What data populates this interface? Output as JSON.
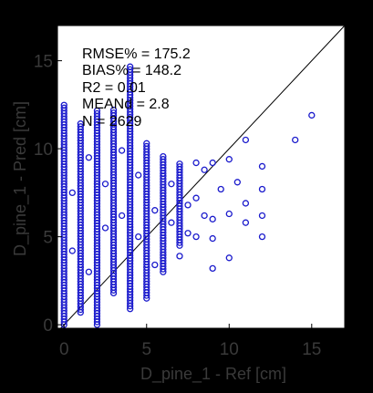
{
  "chart_data": {
    "type": "scatter",
    "xlabel": "D_pine_1 - Ref [cm]",
    "ylabel": "D_pine_1 - Pred [cm]",
    "xlim": [
      -0.4,
      17
    ],
    "ylim": [
      -0.2,
      17
    ],
    "xticks": [
      "0",
      "5",
      "10",
      "15"
    ],
    "yticks": [
      "0",
      "5",
      "10",
      "15"
    ],
    "grid": false,
    "reference_line": "1:1",
    "marker": "open-circle",
    "colors": {
      "points": "#1a1acc",
      "background": "#000000",
      "plot_area": "#ffffff",
      "reference_line": "#000000"
    },
    "stats": [
      {
        "label": "RMSE% = 175.2"
      },
      {
        "label": "BIAS% = 148.2"
      },
      {
        "label": "R2 = 0.01"
      },
      {
        "label": "MEANd = 2.8"
      },
      {
        "label": "N = 2629"
      }
    ],
    "scatter_bands": [
      {
        "x": 0,
        "ymin": 0.0,
        "ymax": 12.6
      },
      {
        "x": 1,
        "ymin": 0.7,
        "ymax": 11.5
      },
      {
        "x": 2,
        "ymin": 0.0,
        "ymax": 12.3
      },
      {
        "x": 3,
        "ymin": 1.8,
        "ymax": 12.3
      },
      {
        "x": 4,
        "ymin": 0.9,
        "ymax": 14.8
      },
      {
        "x": 5,
        "ymin": 1.5,
        "ymax": 10.3
      },
      {
        "x": 6,
        "ymin": 3.0,
        "ymax": 9.7
      },
      {
        "x": 7,
        "ymin": 4.5,
        "ymax": 9.2
      }
    ],
    "scatter_points": [
      {
        "x": 0.5,
        "y": 4.2
      },
      {
        "x": 0.5,
        "y": 7.5
      },
      {
        "x": 1.5,
        "y": 3.0
      },
      {
        "x": 1.5,
        "y": 9.5
      },
      {
        "x": 2.5,
        "y": 5.5
      },
      {
        "x": 2.5,
        "y": 8.0
      },
      {
        "x": 3.5,
        "y": 6.2
      },
      {
        "x": 3.5,
        "y": 9.9
      },
      {
        "x": 4.5,
        "y": 5.0
      },
      {
        "x": 4.5,
        "y": 8.5
      },
      {
        "x": 5.5,
        "y": 6.5
      },
      {
        "x": 5.5,
        "y": 3.4
      },
      {
        "x": 6.5,
        "y": 5.8
      },
      {
        "x": 6.5,
        "y": 8.0
      },
      {
        "x": 7.5,
        "y": 6.8
      },
      {
        "x": 8,
        "y": 7.2
      },
      {
        "x": 8,
        "y": 5.0
      },
      {
        "x": 8,
        "y": 9.2
      },
      {
        "x": 8.5,
        "y": 6.2
      },
      {
        "x": 9,
        "y": 4.9
      },
      {
        "x": 9,
        "y": 9.2
      },
      {
        "x": 9,
        "y": 6.0
      },
      {
        "x": 9.5,
        "y": 7.7
      },
      {
        "x": 10,
        "y": 6.3
      },
      {
        "x": 10,
        "y": 3.8
      },
      {
        "x": 10,
        "y": 9.4
      },
      {
        "x": 11,
        "y": 5.8
      },
      {
        "x": 11,
        "y": 6.9
      },
      {
        "x": 11,
        "y": 10.5
      },
      {
        "x": 12,
        "y": 7.7
      },
      {
        "x": 12,
        "y": 5.0
      },
      {
        "x": 12,
        "y": 9.0
      },
      {
        "x": 12,
        "y": 6.2
      },
      {
        "x": 14,
        "y": 10.5
      },
      {
        "x": 15,
        "y": 11.9
      },
      {
        "x": 8.5,
        "y": 8.8
      },
      {
        "x": 7.5,
        "y": 5.2
      },
      {
        "x": 10.5,
        "y": 8.1
      },
      {
        "x": 9,
        "y": 3.2
      },
      {
        "x": 7,
        "y": 3.9
      }
    ]
  }
}
